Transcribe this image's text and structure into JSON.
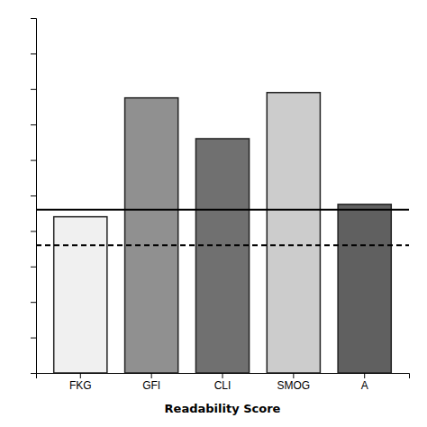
{
  "chart_data": {
    "type": "bar",
    "categories": [
      "FKG",
      "GFI",
      "CLI",
      "SMOG",
      "A"
    ],
    "values": [
      8.8,
      15.5,
      13.2,
      15.8,
      9.5
    ],
    "colors": [
      "#f0f0f0",
      "#909090",
      "#707070",
      "#cccccc",
      "#606060"
    ],
    "xlabel": "Readability Score",
    "ylim": [
      0,
      20
    ],
    "yticks": [
      0,
      2,
      4,
      6,
      8,
      10,
      12,
      14,
      16,
      18,
      20
    ],
    "tick_labels": "x",
    "grid": false,
    "reference_lines": [
      {
        "value": 9.2,
        "color": "#000000",
        "line_style": "solid"
      },
      {
        "value": 7.2,
        "color": "#000000",
        "line_style": "dashed"
      }
    ]
  }
}
